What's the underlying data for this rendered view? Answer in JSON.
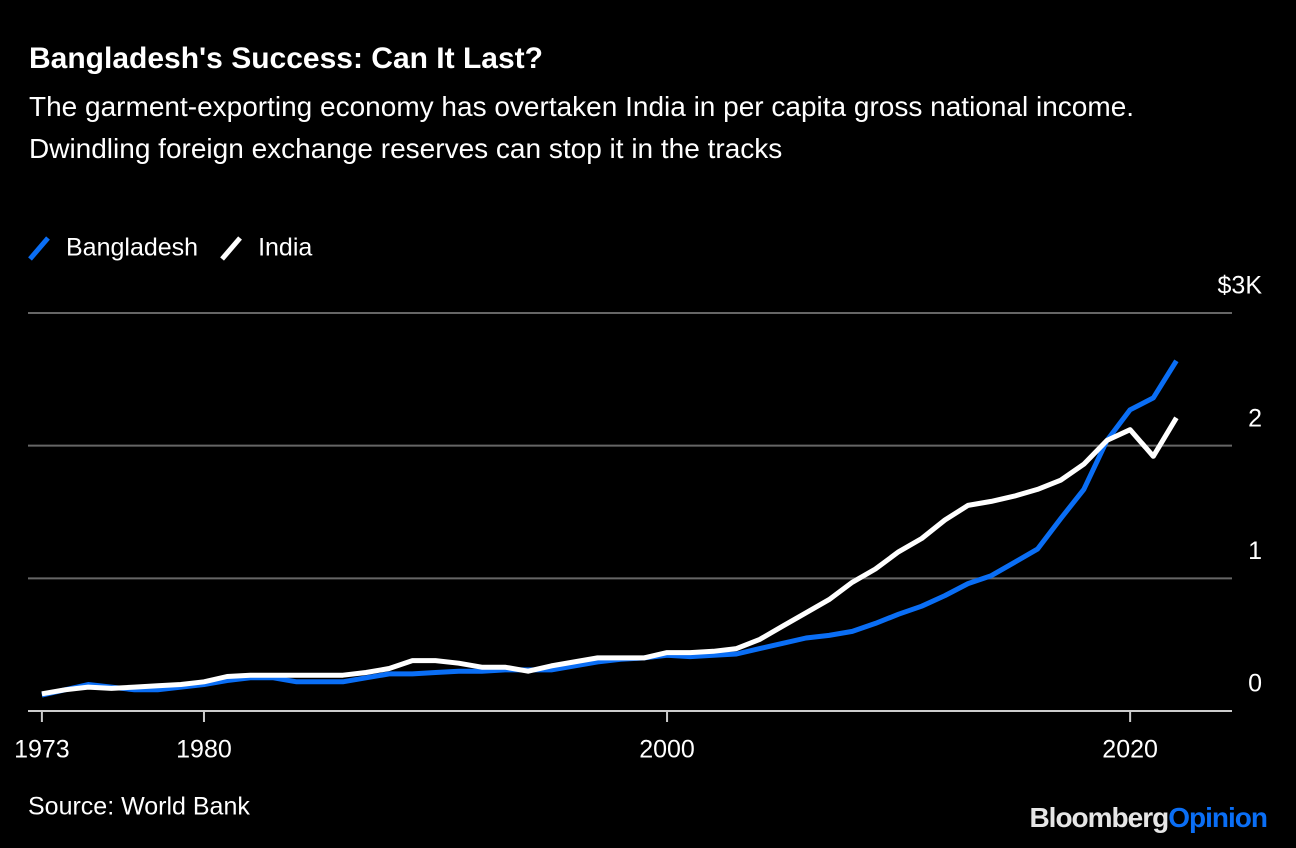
{
  "chart_data": {
    "type": "line",
    "title": "Bangladesh's Success: Can It Last?",
    "subtitle": "The garment-exporting economy has overtaken India in per capita gross national income. Dwindling foreign exchange reserves can stop it in the tracks",
    "source": "Source: World Bank",
    "brand": [
      "Bloomberg",
      "Opinion"
    ],
    "x": [
      1973,
      1974,
      1975,
      1976,
      1977,
      1978,
      1979,
      1980,
      1981,
      1982,
      1983,
      1984,
      1985,
      1986,
      1987,
      1988,
      1989,
      1990,
      1991,
      1992,
      1993,
      1994,
      1995,
      1996,
      1997,
      1998,
      1999,
      2000,
      2001,
      2002,
      2003,
      2004,
      2005,
      2006,
      2007,
      2008,
      2009,
      2010,
      2011,
      2012,
      2013,
      2014,
      2015,
      2016,
      2017,
      2018,
      2019,
      2020,
      2021,
      2022
    ],
    "series": [
      {
        "name": "Bangladesh",
        "color": "#0a6ef5",
        "values": [
          0.12,
          0.16,
          0.2,
          0.18,
          0.16,
          0.16,
          0.18,
          0.2,
          0.23,
          0.25,
          0.25,
          0.22,
          0.22,
          0.22,
          0.25,
          0.28,
          0.28,
          0.29,
          0.3,
          0.3,
          0.31,
          0.31,
          0.31,
          0.34,
          0.37,
          0.39,
          0.4,
          0.42,
          0.41,
          0.42,
          0.43,
          0.47,
          0.51,
          0.55,
          0.57,
          0.6,
          0.66,
          0.73,
          0.79,
          0.87,
          0.96,
          1.02,
          1.12,
          1.22,
          1.45,
          1.67,
          2.04,
          2.27,
          2.36,
          2.64
        ]
      },
      {
        "name": "India",
        "color": "#ffffff",
        "values": [
          0.13,
          0.16,
          0.18,
          0.17,
          0.18,
          0.19,
          0.2,
          0.22,
          0.26,
          0.27,
          0.27,
          0.27,
          0.27,
          0.27,
          0.29,
          0.32,
          0.38,
          0.38,
          0.36,
          0.33,
          0.33,
          0.3,
          0.34,
          0.37,
          0.4,
          0.4,
          0.4,
          0.44,
          0.44,
          0.45,
          0.47,
          0.54,
          0.64,
          0.74,
          0.84,
          0.97,
          1.07,
          1.2,
          1.3,
          1.44,
          1.55,
          1.58,
          1.62,
          1.67,
          1.74,
          1.86,
          2.04,
          2.12,
          1.92,
          2.21
        ]
      }
    ],
    "xlim": [
      1972.4,
      2024.4
    ],
    "xticks": [
      1973,
      1980,
      2000,
      2020
    ],
    "ylim": [
      0,
      3
    ],
    "yticks": [
      0,
      1,
      2,
      {
        "value": 3,
        "label": "$3K"
      }
    ],
    "grid": true,
    "legend": "top-left"
  }
}
